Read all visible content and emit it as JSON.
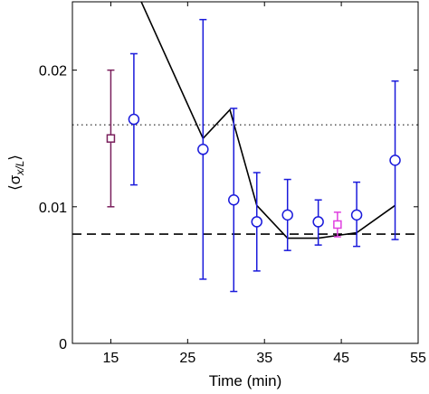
{
  "chart_data": {
    "type": "scatter",
    "xlabel": "Time (min)",
    "ylabel_main": "σ",
    "ylabel_subscript": "x/L",
    "ylabel_left_bracket": "⟨",
    "ylabel_right_bracket": "⟩",
    "xlim": [
      10,
      55
    ],
    "ylim": [
      0,
      0.025
    ],
    "xticks": [
      15,
      25,
      35,
      45,
      55
    ],
    "xtick_labels": [
      "15",
      "25",
      "35",
      "45",
      "55"
    ],
    "yticks": [
      0,
      0.01,
      0.02
    ],
    "ytick_labels": [
      "0",
      "0.01",
      "0.02"
    ],
    "grid": false,
    "colors": {
      "circle_series": "#1a1adb",
      "square_series_1": "#7a1f5c",
      "square_series_2": "#e040e0",
      "line": "#000000"
    },
    "circle_series": {
      "marker": "circle",
      "points": [
        {
          "x": 18,
          "y": 0.0164,
          "lo": 0.0116,
          "hi": 0.0212
        },
        {
          "x": 27,
          "y": 0.0142,
          "lo": 0.0047,
          "hi": 0.0237
        },
        {
          "x": 31,
          "y": 0.0105,
          "lo": 0.0038,
          "hi": 0.0172
        },
        {
          "x": 34,
          "y": 0.0089,
          "lo": 0.0053,
          "hi": 0.0125
        },
        {
          "x": 38,
          "y": 0.0094,
          "lo": 0.0068,
          "hi": 0.012
        },
        {
          "x": 42,
          "y": 0.0089,
          "lo": 0.0072,
          "hi": 0.0105
        },
        {
          "x": 47,
          "y": 0.0094,
          "lo": 0.0071,
          "hi": 0.0118
        },
        {
          "x": 52,
          "y": 0.0134,
          "lo": 0.0076,
          "hi": 0.0192
        }
      ]
    },
    "square_series_1": {
      "marker": "square",
      "points": [
        {
          "x": 15,
          "y": 0.015,
          "lo": 0.01,
          "hi": 0.02
        }
      ]
    },
    "square_series_2": {
      "marker": "square",
      "points": [
        {
          "x": 44.5,
          "y": 0.0087,
          "lo": 0.0078,
          "hi": 0.0096
        }
      ]
    },
    "model_line": {
      "x": [
        18,
        27,
        30.5,
        34,
        38,
        42,
        47,
        52
      ],
      "y": [
        0.0262,
        0.015,
        0.0171,
        0.0101,
        0.0077,
        0.0077,
        0.0081,
        0.0101
      ]
    },
    "dotted_hline": 0.016,
    "dashed_hline": 0.008
  }
}
